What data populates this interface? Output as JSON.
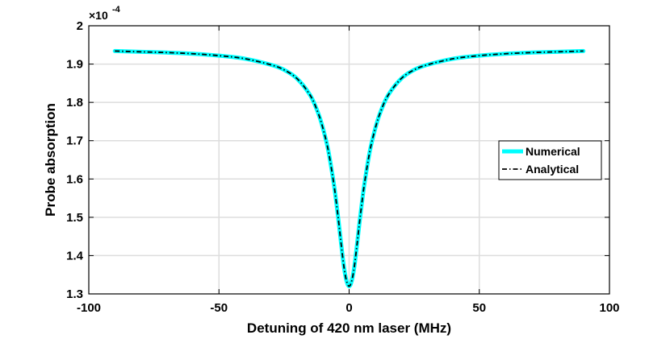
{
  "chart_data": {
    "type": "line",
    "xlabel": "Detuning of 420 nm laser (MHz)",
    "ylabel": "Probe absorption",
    "y_multiplier": "×10",
    "y_exponent": "-4",
    "xlim": [
      -100,
      100
    ],
    "ylim": [
      1.3,
      2.0
    ],
    "xticks": [
      -100,
      -50,
      0,
      50,
      100
    ],
    "xtick_labels": [
      "-100",
      "-50",
      "0",
      "50",
      "100"
    ],
    "yticks": [
      1.3,
      1.4,
      1.5,
      1.6,
      1.7,
      1.8,
      1.9,
      2.0
    ],
    "ytick_labels": [
      "1.3",
      "1.4",
      "1.5",
      "1.6",
      "1.7",
      "1.8",
      "1.9",
      "2"
    ],
    "grid": true,
    "legend_position": "right",
    "x": [
      -90,
      -80,
      -70,
      -60,
      -50,
      -40,
      -30,
      -25,
      -20,
      -15,
      -12,
      -10,
      -8,
      -6,
      -5,
      -4,
      -3,
      -2,
      -1,
      0,
      1,
      2,
      3,
      4,
      5,
      6,
      8,
      10,
      12,
      15,
      20,
      25,
      30,
      40,
      50,
      60,
      70,
      80,
      90
    ],
    "series": [
      {
        "name": "Numerical",
        "color": "#00ffff",
        "style": "solid",
        "values": [
          1.934,
          1.932,
          1.93,
          1.927,
          1.922,
          1.914,
          1.898,
          1.885,
          1.862,
          1.819,
          1.774,
          1.731,
          1.674,
          1.593,
          1.543,
          1.487,
          1.427,
          1.371,
          1.334,
          1.32,
          1.334,
          1.371,
          1.427,
          1.487,
          1.543,
          1.593,
          1.674,
          1.731,
          1.774,
          1.819,
          1.862,
          1.885,
          1.898,
          1.914,
          1.922,
          1.927,
          1.93,
          1.932,
          1.934
        ]
      },
      {
        "name": "Analytical",
        "color": "#000000",
        "style": "dashdot",
        "values": [
          1.934,
          1.932,
          1.93,
          1.927,
          1.922,
          1.914,
          1.898,
          1.885,
          1.862,
          1.819,
          1.774,
          1.731,
          1.674,
          1.593,
          1.543,
          1.487,
          1.427,
          1.371,
          1.334,
          1.32,
          1.334,
          1.371,
          1.427,
          1.487,
          1.543,
          1.593,
          1.674,
          1.731,
          1.774,
          1.819,
          1.862,
          1.885,
          1.898,
          1.914,
          1.922,
          1.927,
          1.93,
          1.932,
          1.934
        ]
      }
    ]
  }
}
